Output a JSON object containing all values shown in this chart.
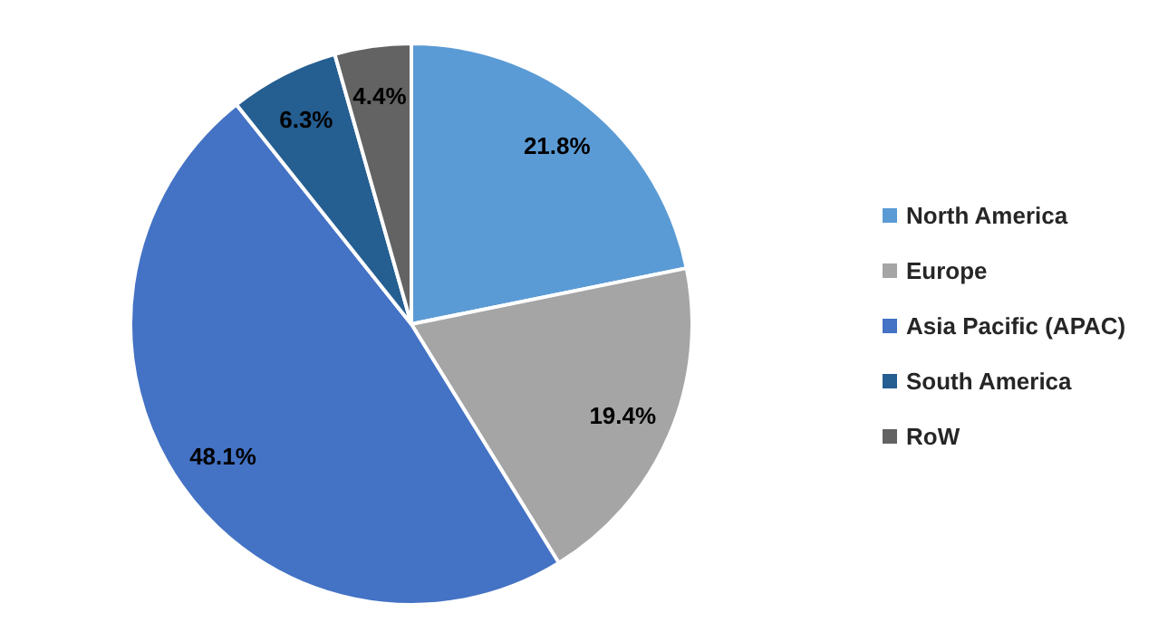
{
  "chart_data": {
    "type": "pie",
    "categories": [
      "North America",
      "Europe",
      "Asia Pacific (APAC)",
      "South America",
      "RoW"
    ],
    "values": [
      21.8,
      19.4,
      48.1,
      6.3,
      4.4
    ],
    "colors": [
      "#5b9bd5",
      "#a5a5a5",
      "#4472c4",
      "#255e91",
      "#636363"
    ],
    "value_labels": [
      "21.8%",
      "19.4%",
      "48.1%",
      "6.3%",
      "4.4%"
    ],
    "legend": "right"
  }
}
